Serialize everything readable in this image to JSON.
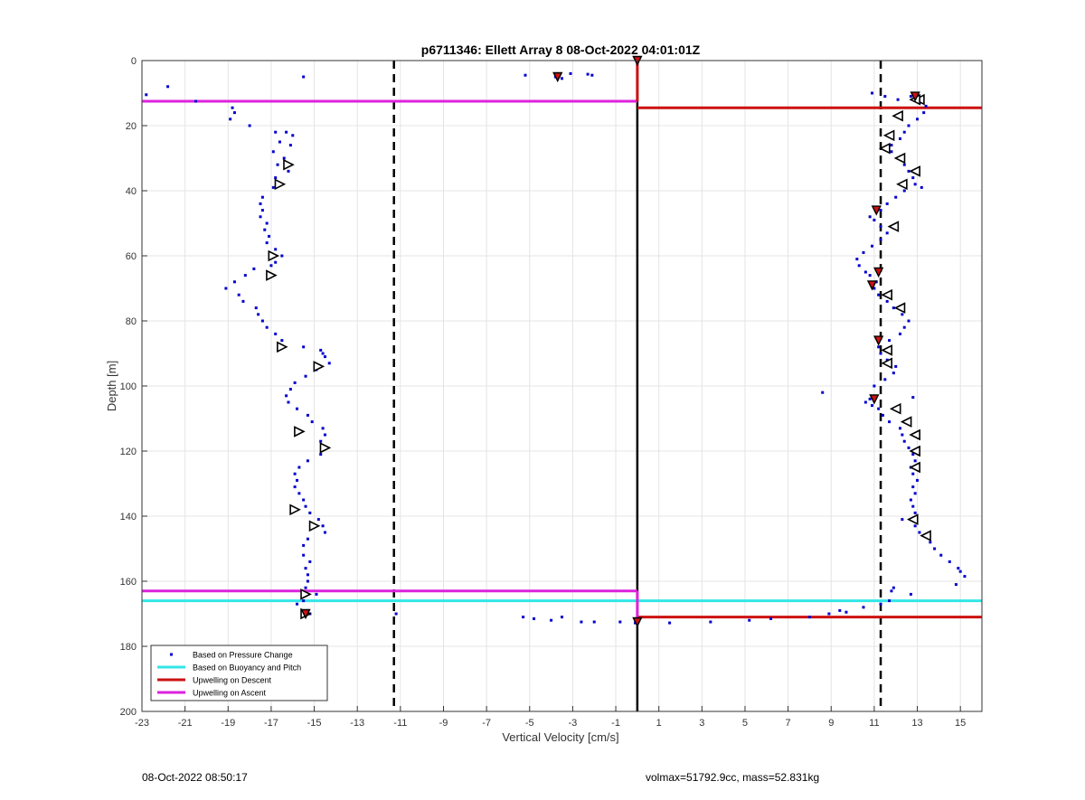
{
  "chart_data": {
    "type": "scatter",
    "title": "p6711346: Ellett Array 8 08-Oct-2022 04:01:01Z",
    "xlabel": "Vertical Velocity [cm/s]",
    "ylabel": "Depth [m]",
    "xlim": [
      -23,
      16
    ],
    "ylim": [
      200,
      0
    ],
    "y_reversed": true,
    "grid": true,
    "xticks": [
      -23,
      -21,
      -19,
      -17,
      -15,
      -13,
      -11,
      -9,
      -7,
      -5,
      -3,
      -1,
      1,
      3,
      5,
      7,
      9,
      11,
      13,
      15
    ],
    "yticks": [
      0,
      20,
      40,
      60,
      80,
      100,
      120,
      140,
      160,
      180,
      200
    ],
    "legend_position": "bottom-left",
    "legend": [
      {
        "label": "Based on Pressure Change",
        "color": "#0000cc",
        "style": "dot"
      },
      {
        "label": "Based on Buoyancy and Pitch",
        "color": "#33e6e6",
        "style": "line"
      },
      {
        "label": "Upwelling on Descent",
        "color": "#cc1111",
        "style": "line"
      },
      {
        "label": "Upwelling on Ascent",
        "color": "#dd22dd",
        "style": "line"
      }
    ],
    "vlines": [
      {
        "x": -11.3,
        "style": "dashed",
        "color": "#000000"
      },
      {
        "x": 0,
        "style": "solid",
        "color": "#000000"
      },
      {
        "x": 11.3,
        "style": "dashed",
        "color": "#000000"
      }
    ],
    "hlines": [
      {
        "y": 12.5,
        "x_from": -23,
        "x_to": 0,
        "color": "#dd22dd",
        "series": "Upwelling on Ascent"
      },
      {
        "y": 163,
        "x_from": -23,
        "x_to": 0,
        "color": "#dd22dd",
        "series": "Upwelling on Ascent"
      },
      {
        "y": 14.5,
        "x_from": 0,
        "x_to": 16,
        "color": "#cc1111",
        "series": "Upwelling on Descent"
      },
      {
        "y": 171,
        "x_from": 0,
        "x_to": 16,
        "color": "#cc1111",
        "series": "Upwelling on Descent"
      },
      {
        "y": 166,
        "x_from": -23,
        "x_to": 16,
        "color": "#33e6e6",
        "series": "Based on Buoyancy and Pitch"
      }
    ],
    "zero_segments": [
      {
        "x": 0,
        "y_from": 0,
        "y_to": 12.5,
        "color": "#cc1111"
      },
      {
        "x": 0,
        "y_from": 163,
        "y_to": 172,
        "color": "#dd22dd"
      }
    ],
    "series": [
      {
        "name": "Based on Pressure Change",
        "marker": "dot",
        "color": "#0000cc",
        "points": [
          [
            -22.8,
            10.5
          ],
          [
            -21.8,
            8
          ],
          [
            -20.5,
            12.5
          ],
          [
            -18.8,
            14.5
          ],
          [
            -18.7,
            16
          ],
          [
            -18.9,
            18
          ],
          [
            -18,
            20
          ],
          [
            -16.8,
            22
          ],
          [
            -16.3,
            22
          ],
          [
            -16,
            23
          ],
          [
            -16.6,
            25
          ],
          [
            -16.1,
            26
          ],
          [
            -16.9,
            28
          ],
          [
            -16.4,
            30
          ],
          [
            -16.7,
            32
          ],
          [
            -16.2,
            34
          ],
          [
            -16.8,
            36
          ],
          [
            -16.5,
            38
          ],
          [
            -16.9,
            39
          ],
          [
            -17.4,
            42
          ],
          [
            -17.5,
            44
          ],
          [
            -17.4,
            46
          ],
          [
            -17.5,
            48
          ],
          [
            -17.2,
            50
          ],
          [
            -17.3,
            52
          ],
          [
            -17.1,
            54
          ],
          [
            -17.2,
            56
          ],
          [
            -16.8,
            58
          ],
          [
            -16.5,
            60
          ],
          [
            -16.8,
            62
          ],
          [
            -17.0,
            63
          ],
          [
            -17.8,
            64
          ],
          [
            -18.2,
            66
          ],
          [
            -18.7,
            68
          ],
          [
            -19.1,
            70
          ],
          [
            -18.5,
            72
          ],
          [
            -18.3,
            74
          ],
          [
            -17.7,
            76
          ],
          [
            -17.6,
            78
          ],
          [
            -17.4,
            80
          ],
          [
            -17.2,
            82
          ],
          [
            -16.8,
            84
          ],
          [
            -16.5,
            86
          ],
          [
            -15.5,
            88
          ],
          [
            -14.7,
            89
          ],
          [
            -14.6,
            90
          ],
          [
            -14.5,
            91
          ],
          [
            -14.3,
            93
          ],
          [
            -14.9,
            95
          ],
          [
            -15.4,
            97
          ],
          [
            -15.9,
            99
          ],
          [
            -16.1,
            101
          ],
          [
            -16.3,
            103
          ],
          [
            -16.2,
            105
          ],
          [
            -15.8,
            107
          ],
          [
            -15.3,
            109
          ],
          [
            -15.1,
            111
          ],
          [
            -14.6,
            113
          ],
          [
            -14.5,
            115
          ],
          [
            -14.7,
            117
          ],
          [
            -14.5,
            119
          ],
          [
            -14.7,
            121
          ],
          [
            -15.3,
            123
          ],
          [
            -15.7,
            125
          ],
          [
            -15.9,
            127
          ],
          [
            -15.8,
            129
          ],
          [
            -15.9,
            131
          ],
          [
            -15.7,
            133
          ],
          [
            -15.5,
            135
          ],
          [
            -15.4,
            137
          ],
          [
            -15.2,
            139
          ],
          [
            -14.8,
            141
          ],
          [
            -14.6,
            143
          ],
          [
            -14.5,
            145
          ],
          [
            -15.3,
            147
          ],
          [
            -15.5,
            149
          ],
          [
            -15.5,
            152
          ],
          [
            -15.2,
            154
          ],
          [
            -15.4,
            156
          ],
          [
            -15.3,
            158
          ],
          [
            -15.3,
            160
          ],
          [
            -15.4,
            162
          ],
          [
            -14.9,
            164
          ],
          [
            -15.5,
            166
          ],
          [
            -15.8,
            167
          ],
          [
            -15.3,
            169
          ],
          [
            -15.2,
            170
          ],
          [
            -15.5,
            5
          ],
          [
            -11.2,
            170
          ],
          [
            -5.2,
            4.5
          ],
          [
            -3.8,
            5
          ],
          [
            -3.5,
            5.5
          ],
          [
            -3.1,
            4
          ],
          [
            -2.3,
            4.2
          ],
          [
            -2.1,
            4.5
          ],
          [
            -5.3,
            171
          ],
          [
            -4.8,
            171.5
          ],
          [
            -4.0,
            172
          ],
          [
            -3.5,
            171
          ],
          [
            -2.6,
            172.5
          ],
          [
            -2.0,
            172.5
          ],
          [
            -0.8,
            172.5
          ],
          [
            -0.1,
            172.8
          ],
          [
            1.5,
            172.8
          ],
          [
            3.4,
            172.5
          ],
          [
            5.2,
            172
          ],
          [
            6.2,
            171.5
          ],
          [
            8.0,
            171
          ],
          [
            8.9,
            170
          ],
          [
            9.4,
            169
          ],
          [
            9.7,
            169.5
          ],
          [
            10.5,
            168
          ],
          [
            11.3,
            167
          ],
          [
            11.7,
            166
          ],
          [
            11.9,
            162
          ],
          [
            12.7,
            164
          ],
          [
            11.8,
            163
          ],
          [
            14.8,
            161
          ],
          [
            15.2,
            158.5
          ],
          [
            15.0,
            157
          ],
          [
            14.9,
            156
          ],
          [
            14.5,
            154
          ],
          [
            14.1,
            152
          ],
          [
            13.8,
            150
          ],
          [
            13.6,
            148
          ],
          [
            13.4,
            146
          ],
          [
            13.1,
            145
          ],
          [
            12.9,
            143
          ],
          [
            12.3,
            141
          ],
          [
            12.9,
            139
          ],
          [
            12.8,
            137
          ],
          [
            12.7,
            135
          ],
          [
            12.9,
            133
          ],
          [
            12.8,
            131
          ],
          [
            13.0,
            129
          ],
          [
            12.8,
            127
          ],
          [
            12.7,
            125
          ],
          [
            12.9,
            123
          ],
          [
            12.8,
            121
          ],
          [
            12.6,
            119
          ],
          [
            12.4,
            117
          ],
          [
            12.3,
            115
          ],
          [
            12.2,
            113
          ],
          [
            11.7,
            111
          ],
          [
            11.4,
            109
          ],
          [
            11.2,
            107
          ],
          [
            10.9,
            106
          ],
          [
            10.6,
            105
          ],
          [
            12.8,
            103.5
          ],
          [
            8.6,
            102
          ],
          [
            10.8,
            104
          ],
          [
            11.0,
            100
          ],
          [
            11.5,
            98
          ],
          [
            11.9,
            96
          ],
          [
            12.0,
            94
          ],
          [
            11.6,
            92
          ],
          [
            11.3,
            90
          ],
          [
            11.2,
            88
          ],
          [
            11.7,
            86
          ],
          [
            12.2,
            84
          ],
          [
            12.4,
            82
          ],
          [
            12.6,
            80
          ],
          [
            12.3,
            78
          ],
          [
            11.9,
            76
          ],
          [
            11.6,
            74
          ],
          [
            11.2,
            72
          ],
          [
            11.0,
            70
          ],
          [
            11.1,
            68
          ],
          [
            10.8,
            66
          ],
          [
            10.6,
            65
          ],
          [
            10.3,
            63
          ],
          [
            10.2,
            61
          ],
          [
            10.5,
            59
          ],
          [
            10.9,
            57
          ],
          [
            11.3,
            55
          ],
          [
            11.6,
            53
          ],
          [
            11.3,
            51
          ],
          [
            11.0,
            49
          ],
          [
            10.8,
            48
          ],
          [
            11.3,
            46
          ],
          [
            11.6,
            44
          ],
          [
            12.0,
            42
          ],
          [
            12.4,
            40
          ],
          [
            12.9,
            38
          ],
          [
            13.2,
            39
          ],
          [
            12.8,
            36
          ],
          [
            12.6,
            34
          ],
          [
            12.4,
            32
          ],
          [
            12.1,
            30
          ],
          [
            11.8,
            28
          ],
          [
            11.5,
            27
          ],
          [
            11.8,
            26
          ],
          [
            12.2,
            24
          ],
          [
            12.4,
            22
          ],
          [
            12.6,
            20
          ],
          [
            13.0,
            18
          ],
          [
            13.3,
            16
          ],
          [
            13.4,
            14
          ],
          [
            13.1,
            13
          ],
          [
            12.7,
            11
          ],
          [
            12.1,
            12
          ],
          [
            11.5,
            11
          ],
          [
            10.9,
            10
          ]
        ]
      },
      {
        "name": "",
        "marker": "triangle-left",
        "color": "#000000",
        "points": [
          [
            13.1,
            12
          ],
          [
            12.1,
            17
          ],
          [
            11.7,
            23
          ],
          [
            11.5,
            27
          ],
          [
            12.2,
            30
          ],
          [
            12.9,
            34
          ],
          [
            12.3,
            38
          ],
          [
            11.9,
            51
          ],
          [
            12.2,
            76
          ],
          [
            11.6,
            72
          ],
          [
            11.6,
            89
          ],
          [
            11.6,
            93
          ],
          [
            12.0,
            107
          ],
          [
            12.5,
            111
          ],
          [
            12.9,
            115
          ],
          [
            12.9,
            120
          ],
          [
            12.9,
            125
          ],
          [
            12.8,
            141
          ],
          [
            13.4,
            146
          ],
          [
            12.9,
            12
          ]
        ]
      },
      {
        "name": "",
        "marker": "triangle-right",
        "color": "#000000",
        "points": [
          [
            -16.2,
            32
          ],
          [
            -16.6,
            38
          ],
          [
            -16.9,
            60
          ],
          [
            -17.0,
            66
          ],
          [
            -16.5,
            88
          ],
          [
            -14.8,
            94
          ],
          [
            -15.7,
            114
          ],
          [
            -14.5,
            119
          ],
          [
            -15.9,
            138
          ],
          [
            -15.0,
            143
          ],
          [
            -15.4,
            164
          ],
          [
            -15.4,
            170
          ]
        ]
      },
      {
        "name": "",
        "marker": "triangle-red",
        "color": "#cc1111",
        "points": [
          [
            -3.7,
            5
          ],
          [
            0,
            0
          ],
          [
            12.9,
            11
          ],
          [
            11.1,
            46
          ],
          [
            11.2,
            65
          ],
          [
            10.9,
            69
          ],
          [
            11.2,
            86
          ],
          [
            11.0,
            104
          ],
          [
            0,
            172.5
          ],
          [
            -15.4,
            170
          ]
        ]
      }
    ]
  },
  "footer": {
    "left": "08-Oct-2022 08:50:17",
    "right": "volmax=51792.9cc, mass=52.831kg"
  }
}
